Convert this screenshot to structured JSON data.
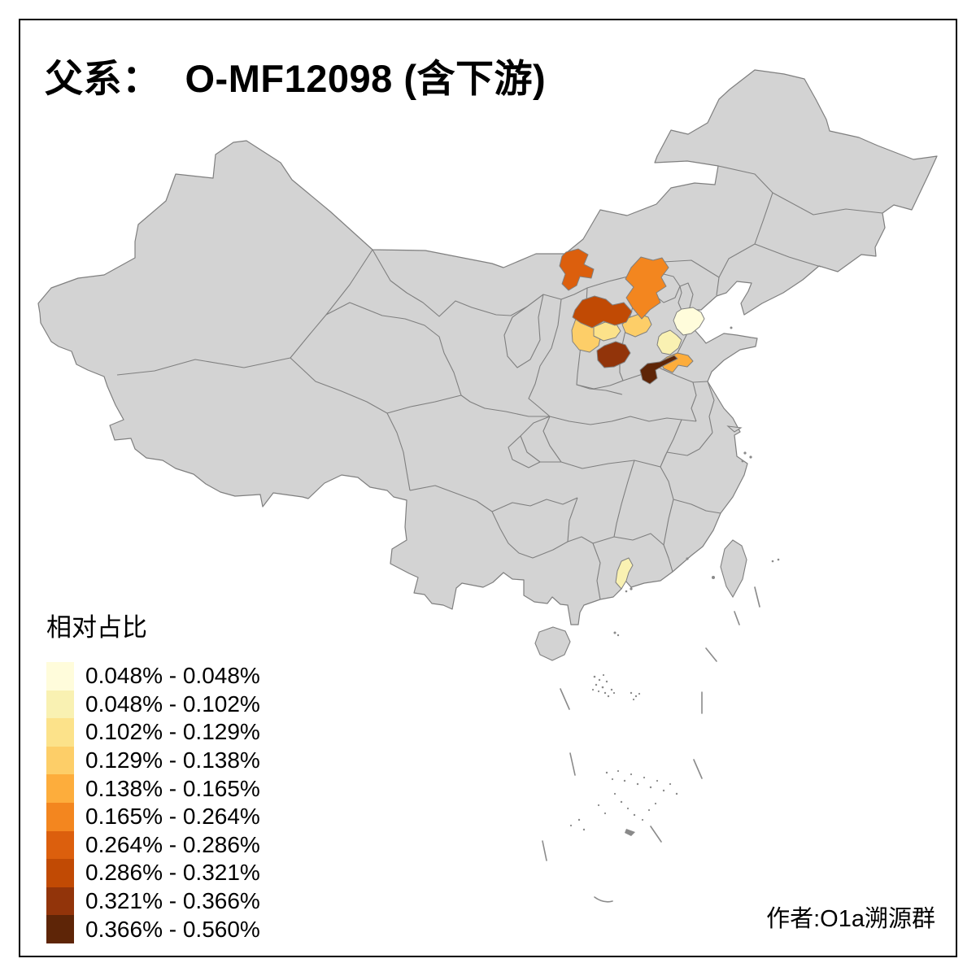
{
  "title": {
    "prefix": "父系：",
    "main": "O-MF12098 (含下游)"
  },
  "legend": {
    "title": "相对占比",
    "entries": [
      {
        "label": "0.048% - 0.048%",
        "color": "#FFFCDB"
      },
      {
        "label": "0.048% - 0.102%",
        "color": "#F9F1B2"
      },
      {
        "label": "0.102% - 0.129%",
        "color": "#FCE28A"
      },
      {
        "label": "0.129% - 0.138%",
        "color": "#FDCE68"
      },
      {
        "label": "0.138% - 0.165%",
        "color": "#FDAD3C"
      },
      {
        "label": "0.165% - 0.264%",
        "color": "#F3861F"
      },
      {
        "label": "0.264% - 0.286%",
        "color": "#DC5F0D"
      },
      {
        "label": "0.286% - 0.321%",
        "color": "#C14A04"
      },
      {
        "label": "0.321% - 0.366%",
        "color": "#92340A"
      },
      {
        "label": "0.366% - 0.560%",
        "color": "#5E2507"
      }
    ]
  },
  "attribution": "作者:O1a溯源群",
  "map": {
    "background": "#FFFFFF",
    "frame_color": "#000000",
    "land_fill": "#D3D3D3",
    "border_color": "#7F7F7F",
    "sea_feature_color": "#8A8A8A",
    "regions": [
      {
        "id": "region-1",
        "legend_index": 0,
        "color": "#FFFCDB"
      },
      {
        "id": "region-2",
        "legend_index": 1,
        "color": "#F9F1B2"
      },
      {
        "id": "region-3",
        "legend_index": 1,
        "color": "#F9F1B2"
      },
      {
        "id": "region-4",
        "legend_index": 2,
        "color": "#FCE28A"
      },
      {
        "id": "region-5",
        "legend_index": 3,
        "color": "#FDCE68"
      },
      {
        "id": "region-6",
        "legend_index": 3,
        "color": "#FDCE68"
      },
      {
        "id": "region-7",
        "legend_index": 4,
        "color": "#FDAD3C"
      },
      {
        "id": "region-8",
        "legend_index": 5,
        "color": "#F3861F"
      },
      {
        "id": "region-9",
        "legend_index": 6,
        "color": "#DC5F0D"
      },
      {
        "id": "region-10",
        "legend_index": 7,
        "color": "#C14A04"
      },
      {
        "id": "region-11",
        "legend_index": 8,
        "color": "#92340A"
      },
      {
        "id": "region-12",
        "legend_index": 9,
        "color": "#5E2507"
      }
    ]
  }
}
